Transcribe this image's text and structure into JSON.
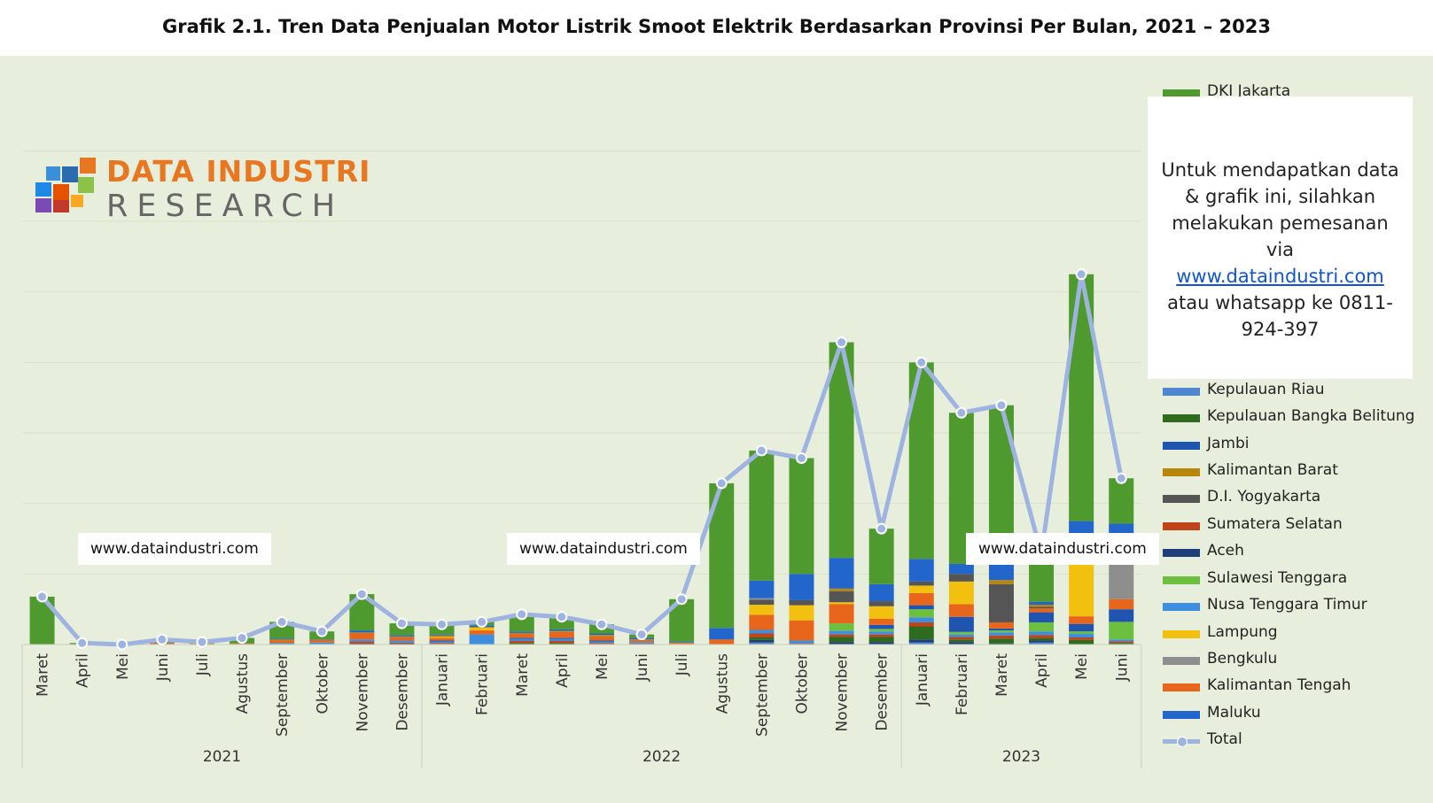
{
  "title": "Grafik 2.1. Tren Data Penjualan Motor Listrik Smoot Elektrik Berdasarkan Provinsi Per Bulan, 2021 – 2023",
  "logo": {
    "line1": "DATA INDUSTRI",
    "line2": "RESEARCH"
  },
  "watermarks": [
    "www.dataindustri.com",
    "www.dataindustri.com",
    "www.dataindustri.com"
  ],
  "promo": {
    "text_before": "Untuk mendapatkan data & grafik ini, silahkan melakukan pemesanan via",
    "link": "www.dataindustri.com",
    "text_after": "atau whatsapp ke 0811-924-397"
  },
  "colors": {
    "background": "#e7efdc",
    "total_line": "#9fb3e0",
    "logo_orange": "#e87722"
  },
  "chart_data": {
    "type": "bar",
    "stacked": true,
    "grid": true,
    "legend_position": "right",
    "categories": [
      "Maret",
      "April",
      "Mei",
      "Juni",
      "Juli",
      "Agustus",
      "September",
      "Oktober",
      "November",
      "Desember",
      "Januari",
      "Februari",
      "Maret",
      "April",
      "Mei",
      "Juni",
      "Juli",
      "Agustus",
      "September",
      "Oktober",
      "November",
      "Desember",
      "Januari",
      "Februari",
      "Maret",
      "April",
      "Mei",
      "Juni"
    ],
    "year_groups": [
      {
        "label": "2021",
        "count": 10
      },
      {
        "label": "2022",
        "count": 12
      },
      {
        "label": "2023",
        "count": 6
      }
    ],
    "legend": [
      {
        "name": "DKI Jakarta",
        "color": "#4f9a2e"
      },
      {
        "name": "Kepulauan Riau",
        "color": "#4f86d1"
      },
      {
        "name": "Kepulauan Bangka Belitung",
        "color": "#2e6b1f"
      },
      {
        "name": "Jambi",
        "color": "#1f55b0"
      },
      {
        "name": "Kalimantan Barat",
        "color": "#b8860b"
      },
      {
        "name": "D.I. Yogyakarta",
        "color": "#555555"
      },
      {
        "name": "Sumatera Selatan",
        "color": "#c0441a"
      },
      {
        "name": "Aceh",
        "color": "#1f3f7a"
      },
      {
        "name": "Sulawesi Tenggara",
        "color": "#6cbf3f"
      },
      {
        "name": "Nusa Tenggara Timur",
        "color": "#3e8ee0"
      },
      {
        "name": "Lampung",
        "color": "#f2c10f"
      },
      {
        "name": "Bengkulu",
        "color": "#8e8e8e"
      },
      {
        "name": "Kalimantan Tengah",
        "color": "#e8661b"
      },
      {
        "name": "Maluku",
        "color": "#2266cc"
      },
      {
        "name": "Total",
        "color": "#9fb3e0",
        "kind": "line"
      }
    ],
    "ylim": [
      0,
      100
    ],
    "total": [
      9.5,
      0.3,
      0,
      1,
      0.5,
      1.3,
      4.5,
      2.6,
      10,
      4.2,
      4,
      4.5,
      6,
      5.5,
      4,
      2,
      9,
      32,
      38.5,
      37,
      60,
      23,
      56,
      46,
      47.5,
      18,
      73.5,
      33
    ],
    "series": [
      {
        "name": "DKI Jakarta",
        "values": [
          9.5,
          0.3,
          0,
          0.6,
          0.3,
          1.1,
          3.3,
          1.6,
          7.2,
          2.3,
          2,
          0.7,
          3.4,
          2.5,
          1.8,
          0.7,
          8.4,
          29.5,
          25.8,
          23,
          42.8,
          11,
          39,
          30,
          27.5,
          9.5,
          49,
          9
        ]
      },
      {
        "name": "Maluku",
        "values": [
          0,
          0,
          0,
          0.1,
          0,
          0,
          0.2,
          0.1,
          0.4,
          0.3,
          0.2,
          0.3,
          0.3,
          0.3,
          0.3,
          0.3,
          0.2,
          2.3,
          3.5,
          5.2,
          6.1,
          3.4,
          4.5,
          2,
          3.3,
          0.6,
          4.3,
          2.2
        ]
      },
      {
        "name": "Kalimantan Barat",
        "values": [
          0,
          0,
          0,
          0,
          0,
          0,
          0.2,
          0,
          0.2,
          0.2,
          0.3,
          0.2,
          0.2,
          0.2,
          0.3,
          0.1,
          0.1,
          0,
          0,
          0,
          0.5,
          0,
          0,
          0,
          0.8,
          0.4,
          0.3,
          0.8
        ]
      },
      {
        "name": "Bengkulu",
        "values": [
          0,
          0,
          0,
          0,
          0,
          0,
          0,
          0,
          0,
          0,
          0,
          0,
          0,
          0,
          0,
          0,
          0,
          0,
          0.3,
          0,
          0,
          0,
          0,
          0,
          0,
          0,
          0,
          12
        ]
      },
      {
        "name": "D.I. Yogyakarta",
        "values": [
          0,
          0,
          0,
          0,
          0,
          0,
          0,
          0,
          0,
          0,
          0,
          0,
          0,
          0,
          0,
          0,
          0,
          0,
          1,
          1,
          2.2,
          1,
          0.8,
          1.5,
          7.6,
          0.3,
          0.5,
          0
        ]
      },
      {
        "name": "Lampung",
        "values": [
          0,
          0,
          0,
          0,
          0,
          0,
          0,
          0,
          0,
          0,
          0.2,
          0.5,
          0,
          0,
          0,
          0,
          0,
          0,
          2,
          3,
          0.4,
          2.5,
          1.5,
          4.5,
          0,
          0,
          13.8,
          0
        ]
      },
      {
        "name": "Kalimantan Tengah",
        "values": [
          0,
          0,
          0,
          0.2,
          0.1,
          0.1,
          0.5,
          0.5,
          1.2,
          0.6,
          0.5,
          0.8,
          0.8,
          1.2,
          0.8,
          0.4,
          0.2,
          1,
          3,
          4,
          3.8,
          1.2,
          2.4,
          2.5,
          1.2,
          0.8,
          1.5,
          2
        ]
      },
      {
        "name": "Jambi",
        "values": [
          0,
          0,
          0,
          0,
          0,
          0,
          0,
          0,
          0,
          0,
          0.2,
          0,
          0.2,
          0.2,
          0.2,
          0,
          0,
          0,
          0,
          0,
          0,
          0.8,
          0.8,
          3,
          0.4,
          2,
          1.5,
          2.5
        ]
      },
      {
        "name": "Sulawesi Tenggara",
        "values": [
          0,
          0,
          0,
          0,
          0,
          0,
          0,
          0,
          0,
          0,
          0,
          0,
          0,
          0,
          0,
          0,
          0,
          0,
          0,
          0,
          1.5,
          0.5,
          1.6,
          0.5,
          0.4,
          1.8,
          0.5,
          3.5
        ]
      },
      {
        "name": "Nusa Tenggara Timur",
        "values": [
          0,
          0,
          0,
          0.1,
          0.1,
          0,
          0.3,
          0.3,
          0.4,
          0.4,
          0.3,
          2.0,
          0.4,
          0.4,
          0.3,
          0.3,
          0.1,
          0,
          0.7,
          0.6,
          0.7,
          0.6,
          1,
          0.5,
          0.6,
          0.7,
          0.7,
          0.4
        ]
      },
      {
        "name": "Sumatera Selatan",
        "values": [
          0,
          0,
          0,
          0,
          0,
          0,
          0,
          0.1,
          0.4,
          0.2,
          0.2,
          0,
          0.4,
          0.4,
          0.2,
          0.1,
          0,
          0,
          0.8,
          0.2,
          0.5,
          0.5,
          0.8,
          0.5,
          0.6,
          0.6,
          0.5,
          0.3
        ]
      },
      {
        "name": "Kepulauan Bangka Belitung",
        "values": [
          0,
          0,
          0,
          0,
          0,
          0.1,
          0,
          0,
          0,
          0,
          0,
          0,
          0.3,
          0.3,
          0.1,
          0.1,
          0,
          0,
          0.5,
          0,
          1,
          1,
          2.6,
          0.5,
          1,
          0.5,
          0.9,
          0.3
        ]
      },
      {
        "name": "Aceh",
        "values": [
          0,
          0,
          0,
          0,
          0,
          0,
          0,
          0,
          0.2,
          0.2,
          0.1,
          0,
          0,
          0,
          0,
          0,
          0,
          0,
          0.5,
          0,
          0.5,
          0.5,
          0.6,
          0.5,
          0.2,
          0.4,
          0,
          0
        ]
      },
      {
        "name": "Kepulauan Riau",
        "values": [
          0,
          0,
          0,
          0,
          0,
          0,
          0,
          0,
          0,
          0,
          0,
          0,
          0,
          0,
          0,
          0,
          0,
          0,
          0.4,
          0,
          0,
          0,
          0.4,
          0,
          0,
          0.4,
          0,
          0
        ]
      }
    ]
  }
}
